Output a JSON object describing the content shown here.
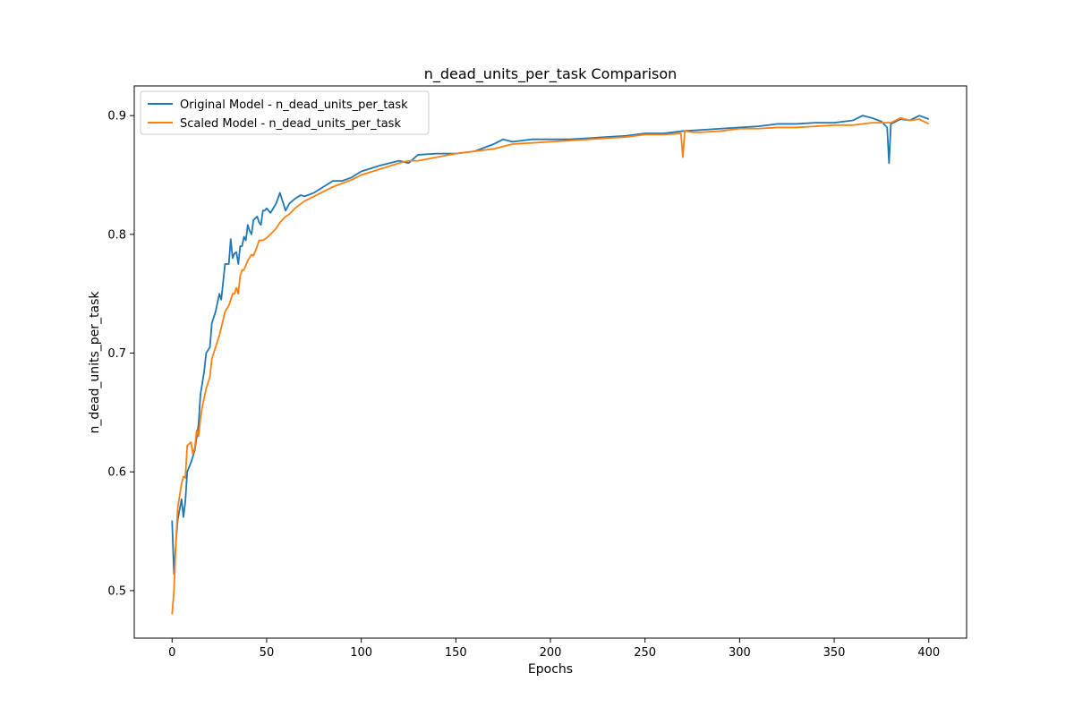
{
  "chart_data": {
    "type": "line",
    "title": "n_dead_units_per_task Comparison",
    "xlabel": "Epochs",
    "ylabel": "n_dead_units_per_task",
    "xlim": [
      -20,
      420
    ],
    "ylim": [
      0.46,
      0.925
    ],
    "x_ticks": [
      0,
      50,
      100,
      150,
      200,
      250,
      300,
      350,
      400
    ],
    "y_ticks": [
      0.5,
      0.6,
      0.7,
      0.8,
      0.9
    ],
    "grid": false,
    "legend_position": "top-left",
    "series": [
      {
        "name": "Original Model - n_dead_units_per_task",
        "color": "#1f77b4",
        "x": [
          0,
          1,
          2,
          3,
          5,
          6,
          7,
          8,
          10,
          12,
          14,
          15,
          16,
          17,
          18,
          20,
          21,
          22,
          23,
          25,
          26,
          27,
          28,
          30,
          31,
          32,
          33,
          34,
          35,
          36,
          37,
          38,
          39,
          40,
          41,
          42,
          43,
          45,
          46,
          47,
          48,
          49,
          50,
          52,
          55,
          57,
          60,
          62,
          65,
          68,
          70,
          75,
          80,
          85,
          90,
          95,
          100,
          110,
          120,
          125,
          130,
          140,
          150,
          160,
          170,
          175,
          180,
          190,
          200,
          210,
          220,
          230,
          240,
          250,
          260,
          270,
          280,
          290,
          300,
          310,
          320,
          330,
          340,
          350,
          360,
          365,
          370,
          375,
          378,
          379,
          380,
          385,
          390,
          395,
          400
        ],
        "values": [
          0.559,
          0.514,
          0.54,
          0.56,
          0.577,
          0.562,
          0.575,
          0.6,
          0.608,
          0.618,
          0.64,
          0.665,
          0.675,
          0.685,
          0.7,
          0.705,
          0.725,
          0.73,
          0.735,
          0.75,
          0.745,
          0.76,
          0.775,
          0.775,
          0.796,
          0.78,
          0.784,
          0.785,
          0.775,
          0.79,
          0.79,
          0.798,
          0.795,
          0.808,
          0.803,
          0.8,
          0.812,
          0.815,
          0.81,
          0.808,
          0.82,
          0.82,
          0.822,
          0.818,
          0.826,
          0.835,
          0.82,
          0.826,
          0.83,
          0.833,
          0.832,
          0.835,
          0.84,
          0.845,
          0.845,
          0.848,
          0.853,
          0.858,
          0.862,
          0.86,
          0.867,
          0.868,
          0.868,
          0.87,
          0.876,
          0.88,
          0.878,
          0.88,
          0.88,
          0.88,
          0.881,
          0.882,
          0.883,
          0.885,
          0.885,
          0.887,
          0.888,
          0.889,
          0.89,
          0.891,
          0.893,
          0.893,
          0.894,
          0.894,
          0.896,
          0.9,
          0.898,
          0.895,
          0.89,
          0.86,
          0.893,
          0.897,
          0.896,
          0.9,
          0.897
        ]
      },
      {
        "name": "Scaled Model - n_dead_units_per_task",
        "color": "#ff7f0e",
        "x": [
          0,
          1,
          2,
          3,
          5,
          6,
          7,
          8,
          10,
          11,
          12,
          13,
          14,
          15,
          16,
          18,
          20,
          21,
          22,
          23,
          25,
          27,
          28,
          30,
          32,
          33,
          34,
          35,
          36,
          37,
          38,
          40,
          42,
          43,
          45,
          46,
          48,
          50,
          52,
          55,
          57,
          60,
          62,
          65,
          70,
          75,
          80,
          85,
          90,
          95,
          100,
          110,
          120,
          125,
          130,
          140,
          150,
          160,
          170,
          175,
          180,
          190,
          200,
          210,
          220,
          230,
          240,
          250,
          260,
          269,
          270,
          271,
          275,
          280,
          290,
          300,
          310,
          320,
          330,
          340,
          350,
          360,
          370,
          380,
          385,
          390,
          395,
          400
        ],
        "values": [
          0.48,
          0.5,
          0.54,
          0.57,
          0.59,
          0.596,
          0.595,
          0.622,
          0.625,
          0.615,
          0.62,
          0.635,
          0.63,
          0.645,
          0.655,
          0.67,
          0.68,
          0.695,
          0.7,
          0.705,
          0.715,
          0.728,
          0.735,
          0.74,
          0.75,
          0.75,
          0.755,
          0.75,
          0.765,
          0.77,
          0.77,
          0.778,
          0.783,
          0.782,
          0.79,
          0.795,
          0.795,
          0.797,
          0.8,
          0.805,
          0.81,
          0.815,
          0.817,
          0.822,
          0.828,
          0.832,
          0.836,
          0.84,
          0.843,
          0.846,
          0.85,
          0.855,
          0.86,
          0.862,
          0.862,
          0.865,
          0.868,
          0.87,
          0.872,
          0.874,
          0.876,
          0.877,
          0.878,
          0.879,
          0.88,
          0.881,
          0.882,
          0.884,
          0.884,
          0.885,
          0.865,
          0.887,
          0.886,
          0.886,
          0.887,
          0.889,
          0.889,
          0.89,
          0.89,
          0.891,
          0.892,
          0.892,
          0.894,
          0.894,
          0.898,
          0.896,
          0.897,
          0.893
        ]
      }
    ]
  }
}
